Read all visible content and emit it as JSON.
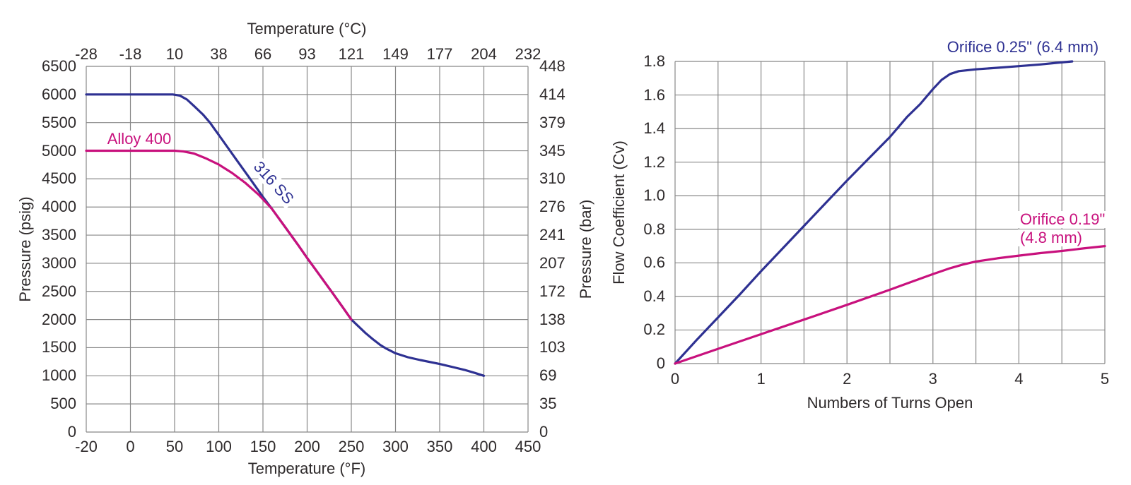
{
  "page": {
    "background": "#ffffff"
  },
  "colors": {
    "navy": "#2e3192",
    "magenta": "#c8117d",
    "grid": "#888888",
    "text": "#2e2a2b",
    "background": "#ffffff"
  },
  "chart_data": [
    {
      "type": "line",
      "name": "pressure-temperature-rating",
      "title_top": "Temperature (°C)",
      "xlabel": "Temperature (°F)",
      "ylabel_left": "Pressure (psig)",
      "ylabel_right": "Pressure (bar)",
      "grid": true,
      "xlim_f": [
        -20,
        450
      ],
      "ylim_psig": [
        0,
        6500
      ],
      "x_ticks_f": [
        -20,
        0,
        50,
        100,
        150,
        200,
        250,
        300,
        350,
        400,
        450
      ],
      "x_ticks_c": [
        -28,
        -18,
        10,
        38,
        66,
        93,
        121,
        149,
        177,
        204,
        232
      ],
      "y_ticks_psig": [
        0,
        500,
        1000,
        1500,
        2000,
        2500,
        3000,
        3500,
        4000,
        4500,
        5000,
        5500,
        6000,
        6500
      ],
      "y_ticks_bar": [
        0,
        35,
        69,
        103,
        138,
        172,
        207,
        241,
        276,
        310,
        345,
        379,
        414,
        448
      ],
      "series": [
        {
          "name": "316 SS",
          "color": "#2e3192",
          "points": [
            [
              -20,
              6000
            ],
            [
              0,
              6000
            ],
            [
              25,
              6000
            ],
            [
              48,
              6000
            ],
            [
              56,
              5980
            ],
            [
              64,
              5910
            ],
            [
              72,
              5795
            ],
            [
              82,
              5645
            ],
            [
              90,
              5500
            ],
            [
              105,
              5170
            ],
            [
              120,
              4840
            ],
            [
              135,
              4510
            ],
            [
              150,
              4180
            ],
            [
              160,
              3970
            ],
            [
              175,
              3645
            ],
            [
              190,
              3320
            ],
            [
              200,
              3095
            ],
            [
              215,
              2770
            ],
            [
              230,
              2445
            ],
            [
              240,
              2225
            ],
            [
              250,
              2000
            ],
            [
              258,
              1880
            ],
            [
              266,
              1760
            ],
            [
              274,
              1655
            ],
            [
              283,
              1545
            ],
            [
              290,
              1480
            ],
            [
              300,
              1400
            ],
            [
              314,
              1330
            ],
            [
              328,
              1280
            ],
            [
              350,
              1210
            ],
            [
              365,
              1155
            ],
            [
              378,
              1105
            ],
            [
              390,
              1050
            ],
            [
              400,
              1000
            ]
          ]
        },
        {
          "name": "Alloy 400",
          "color": "#c8117d",
          "points": [
            [
              -20,
              5000
            ],
            [
              0,
              5000
            ],
            [
              25,
              5000
            ],
            [
              50,
              5000
            ],
            [
              60,
              4988
            ],
            [
              72,
              4950
            ],
            [
              85,
              4868
            ],
            [
              100,
              4755
            ],
            [
              115,
              4605
            ],
            [
              130,
              4430
            ],
            [
              145,
              4220
            ],
            [
              160,
              3970
            ],
            [
              175,
              3645
            ],
            [
              190,
              3320
            ],
            [
              200,
              3095
            ],
            [
              215,
              2770
            ],
            [
              230,
              2445
            ],
            [
              240,
              2225
            ],
            [
              250,
              2000
            ]
          ]
        }
      ],
      "annotations": [
        {
          "text": "Alloy 400",
          "color": "#c8117d"
        },
        {
          "text": "316 SS",
          "color": "#2e3192",
          "rotation_deg": 48
        }
      ]
    },
    {
      "type": "line",
      "name": "flow-coefficient-vs-turns",
      "xlabel": "Numbers of Turns Open",
      "ylabel": "Flow Coefficient (Cv)",
      "grid": true,
      "xlim": [
        0,
        5
      ],
      "ylim": [
        0,
        1.8
      ],
      "x_tick_labels": [
        0,
        1,
        2,
        3,
        4,
        5
      ],
      "x_grid_step": 0.5,
      "y_tick_labels": [
        "0",
        "0.2",
        "0.4",
        "0.6",
        "0.8",
        "1.0",
        "1.2",
        "1.4",
        "1.6",
        "1.8"
      ],
      "series": [
        {
          "name": "Orifice 0.25\" (6.4 mm)",
          "color": "#2e3192",
          "points": [
            [
              0,
              0
            ],
            [
              0.25,
              0.14
            ],
            [
              0.5,
              0.275
            ],
            [
              0.75,
              0.41
            ],
            [
              1,
              0.55
            ],
            [
              1.25,
              0.685
            ],
            [
              1.5,
              0.82
            ],
            [
              1.75,
              0.955
            ],
            [
              2,
              1.09
            ],
            [
              2.25,
              1.22
            ],
            [
              2.5,
              1.35
            ],
            [
              2.7,
              1.47
            ],
            [
              2.85,
              1.545
            ],
            [
              3.0,
              1.635
            ],
            [
              3.1,
              1.69
            ],
            [
              3.2,
              1.725
            ],
            [
              3.3,
              1.742
            ],
            [
              3.5,
              1.753
            ],
            [
              3.75,
              1.762
            ],
            [
              4.0,
              1.772
            ],
            [
              4.25,
              1.782
            ],
            [
              4.45,
              1.792
            ],
            [
              4.62,
              1.8
            ]
          ]
        },
        {
          "name": "Orifice 0.19\" (4.8 mm)",
          "color": "#c8117d",
          "points": [
            [
              0,
              0
            ],
            [
              0.5,
              0.088
            ],
            [
              1,
              0.175
            ],
            [
              1.5,
              0.262
            ],
            [
              2,
              0.35
            ],
            [
              2.5,
              0.44
            ],
            [
              2.75,
              0.487
            ],
            [
              3,
              0.533
            ],
            [
              3.2,
              0.568
            ],
            [
              3.35,
              0.59
            ],
            [
              3.5,
              0.608
            ],
            [
              3.75,
              0.627
            ],
            [
              4,
              0.643
            ],
            [
              4.25,
              0.658
            ],
            [
              4.5,
              0.671
            ],
            [
              4.75,
              0.686
            ],
            [
              5,
              0.7
            ]
          ]
        }
      ],
      "annotations": [
        {
          "text": "Orifice 0.25\" (6.4 mm)",
          "color": "#2e3192"
        },
        {
          "text": "Orifice 0.19\"",
          "color": "#c8117d"
        },
        {
          "text": "(4.8 mm)",
          "color": "#c8117d"
        }
      ]
    }
  ],
  "labels": {
    "temp_c_title": "Temperature (°C)",
    "temp_f_title": "Temperature (°F)",
    "psig_title": "Pressure (psig)",
    "bar_title": "Pressure (bar)",
    "cv_title": "Flow Coefficient (Cv)",
    "turns_title": "Numbers of Turns Open",
    "alloy400": "Alloy 400",
    "ss316": "316 SS",
    "orifice25": "Orifice 0.25\" (6.4 mm)",
    "orifice19_line1": "Orifice 0.19\"",
    "orifice19_line2": "(4.8 mm)"
  }
}
